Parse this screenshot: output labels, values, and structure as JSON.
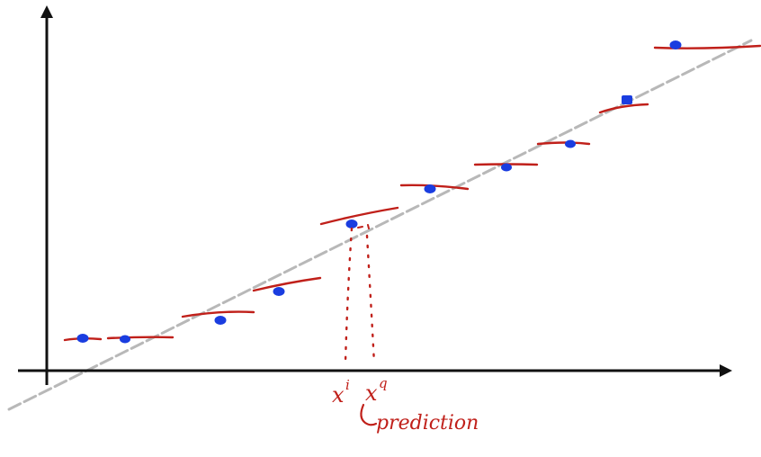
{
  "colors": {
    "axis": "#111111",
    "points": "#1a3de0",
    "fit_segments": "#c0201a",
    "trend_line": "#b8b8b8",
    "annotation": "#c0201a"
  },
  "annotations": {
    "x_i": "x",
    "x_i_superscript": "i",
    "x_q": "x",
    "x_q_superscript": "q",
    "prediction": "prediction"
  }
}
